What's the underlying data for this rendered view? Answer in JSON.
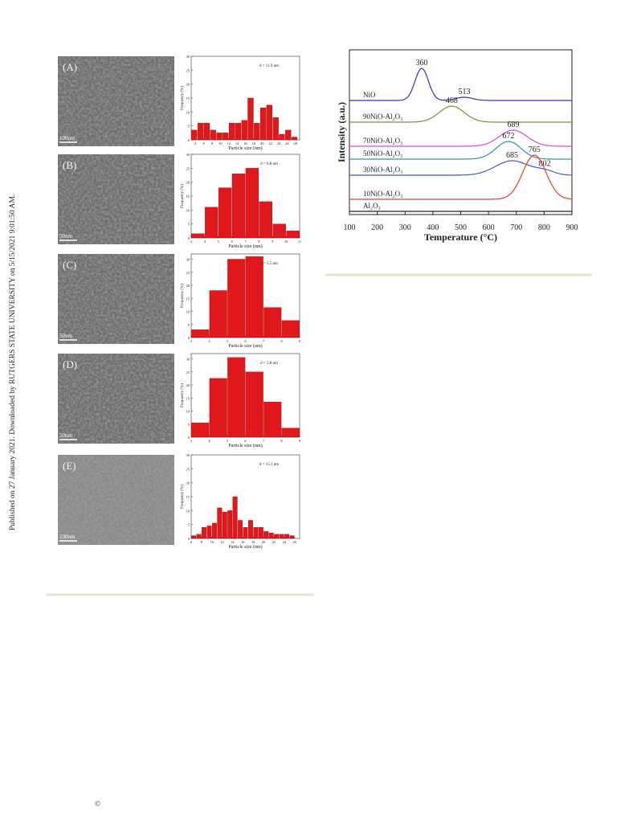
{
  "side_note": "Published on 27 January 2021. Downloaded by RUTGERS STATE UNIVERSITY on 5/15/2021 9:01:50 AM.",
  "figure1": {
    "panels": [
      {
        "label": "(A)",
        "scale_bar": "100nm",
        "chart_data": {
          "type": "histogram",
          "title": "d = 11.9 nm",
          "xlabel": "Particle size (nm)",
          "ylabel": "Frequency (%)",
          "color": "#e0181b",
          "bins": [
            3,
            4.5,
            6,
            7.5,
            9,
            10.5,
            12,
            13.5,
            15,
            16.5,
            18,
            19.5,
            21,
            22.5,
            24,
            25.5,
            27,
            28.5
          ],
          "values": [
            3.5,
            6,
            6,
            3.5,
            2.5,
            2.5,
            6,
            6,
            7,
            15,
            6,
            11.5,
            12.5,
            8,
            2,
            3.5,
            1
          ],
          "xlim": [
            3,
            29
          ],
          "xticks": [
            4,
            6,
            8,
            10,
            12,
            14,
            16,
            18,
            20,
            22,
            24,
            26,
            28
          ],
          "ylim": [
            0,
            30
          ],
          "yticks": [
            0,
            5,
            10,
            15,
            20,
            25,
            30
          ]
        }
      },
      {
        "label": "(B)",
        "scale_bar": "50nm",
        "chart_data": {
          "type": "histogram",
          "title": "d = 6.8 nm",
          "xlabel": "Particle size (nm)",
          "ylabel": "Frequency (%)",
          "color": "#e0181b",
          "bins": [
            3,
            4,
            5,
            6,
            7,
            8,
            9,
            10,
            11
          ],
          "values": [
            1.5,
            11,
            18,
            23,
            25,
            13,
            5,
            2.5
          ],
          "xlim": [
            3,
            11
          ],
          "xticks": [
            3,
            4,
            5,
            6,
            7,
            8,
            9,
            10,
            11
          ],
          "ylim": [
            0,
            30
          ],
          "yticks": [
            0,
            5,
            10,
            15,
            20,
            25,
            30
          ]
        }
      },
      {
        "label": "(C)",
        "scale_bar": "50nm",
        "chart_data": {
          "type": "histogram",
          "title": "d = 5.5 nm",
          "xlabel": "Particle size (nm)",
          "ylabel": "Frequency (%)",
          "color": "#e0181b",
          "bins": [
            3,
            4,
            5,
            6,
            7,
            8,
            9
          ],
          "values": [
            3,
            18,
            30,
            31,
            11.5,
            6.5
          ],
          "xlim": [
            3,
            9
          ],
          "xticks": [
            3,
            4,
            5,
            6,
            7,
            8,
            9
          ],
          "ylim": [
            0,
            32
          ],
          "yticks": [
            0,
            5,
            10,
            15,
            20,
            25,
            30
          ]
        }
      },
      {
        "label": "(D)",
        "scale_bar": "50nm",
        "chart_data": {
          "type": "histogram",
          "title": "d = 5.8 nm",
          "xlabel": "Particle size (nm)",
          "ylabel": "Frequency (%)",
          "color": "#e0181b",
          "bins": [
            3,
            4,
            5,
            6,
            7,
            8,
            9
          ],
          "values": [
            5.5,
            22.5,
            30.5,
            25,
            13.5,
            3.5
          ],
          "xlim": [
            3,
            9
          ],
          "xticks": [
            3,
            4,
            5,
            6,
            7,
            8,
            9
          ],
          "ylim": [
            0,
            32
          ],
          "yticks": [
            0,
            5,
            10,
            15,
            20,
            25,
            30
          ]
        }
      },
      {
        "label": "(E)",
        "scale_bar": "100nm",
        "chart_data": {
          "type": "histogram",
          "title": "d = 15.1 nm",
          "xlabel": "Particle size (nm)",
          "ylabel": "Frequency (%)",
          "color": "#e0181b",
          "bins": [
            6,
            7,
            8,
            9,
            10,
            11,
            12,
            13,
            14,
            15,
            16,
            17,
            18,
            19,
            20,
            21,
            22,
            23,
            24,
            25,
            26
          ],
          "values": [
            1,
            1.5,
            4,
            4.5,
            5.5,
            11,
            9.5,
            10,
            15,
            6.5,
            4,
            6.5,
            4,
            4,
            2.5,
            2,
            1.5,
            1.5,
            1.5,
            1
          ],
          "xlim": [
            6,
            27
          ],
          "xticks": [
            6,
            8,
            10,
            12,
            14,
            16,
            18,
            20,
            22,
            24,
            26
          ],
          "ylim": [
            0,
            30
          ],
          "yticks": [
            0,
            5,
            10,
            15,
            20,
            25,
            30
          ]
        }
      }
    ]
  },
  "figure2": {
    "chart_data": {
      "type": "line",
      "xlabel": "Temperature (°C)",
      "ylabel": "Intensity (a.u.)",
      "xlim": [
        100,
        900
      ],
      "xticks": [
        100,
        200,
        300,
        400,
        500,
        600,
        700,
        800,
        900
      ],
      "series": [
        {
          "name": "NiO",
          "color": "#3535b0",
          "peaks": [
            360,
            513
          ]
        },
        {
          "name": "90NiO-Al₂O₃",
          "color": "#8a8a3a",
          "peaks": [
            468
          ]
        },
        {
          "name": "70NiO-Al₂O₃",
          "color": "#d050d0",
          "peaks": [
            689
          ]
        },
        {
          "name": "50NiO-Al₂O₃",
          "color": "#2a9a9a",
          "peaks": [
            672
          ]
        },
        {
          "name": "30NiO-Al₂O₃",
          "color": "#4a58b8",
          "peaks": [
            685,
            802
          ]
        },
        {
          "name": "10NiO-Al₂O₃",
          "color": "#e8402a",
          "peaks": [
            765
          ]
        },
        {
          "name": "Al₂O₃",
          "color": "#222222",
          "peaks": []
        }
      ]
    }
  },
  "copyright": "©"
}
